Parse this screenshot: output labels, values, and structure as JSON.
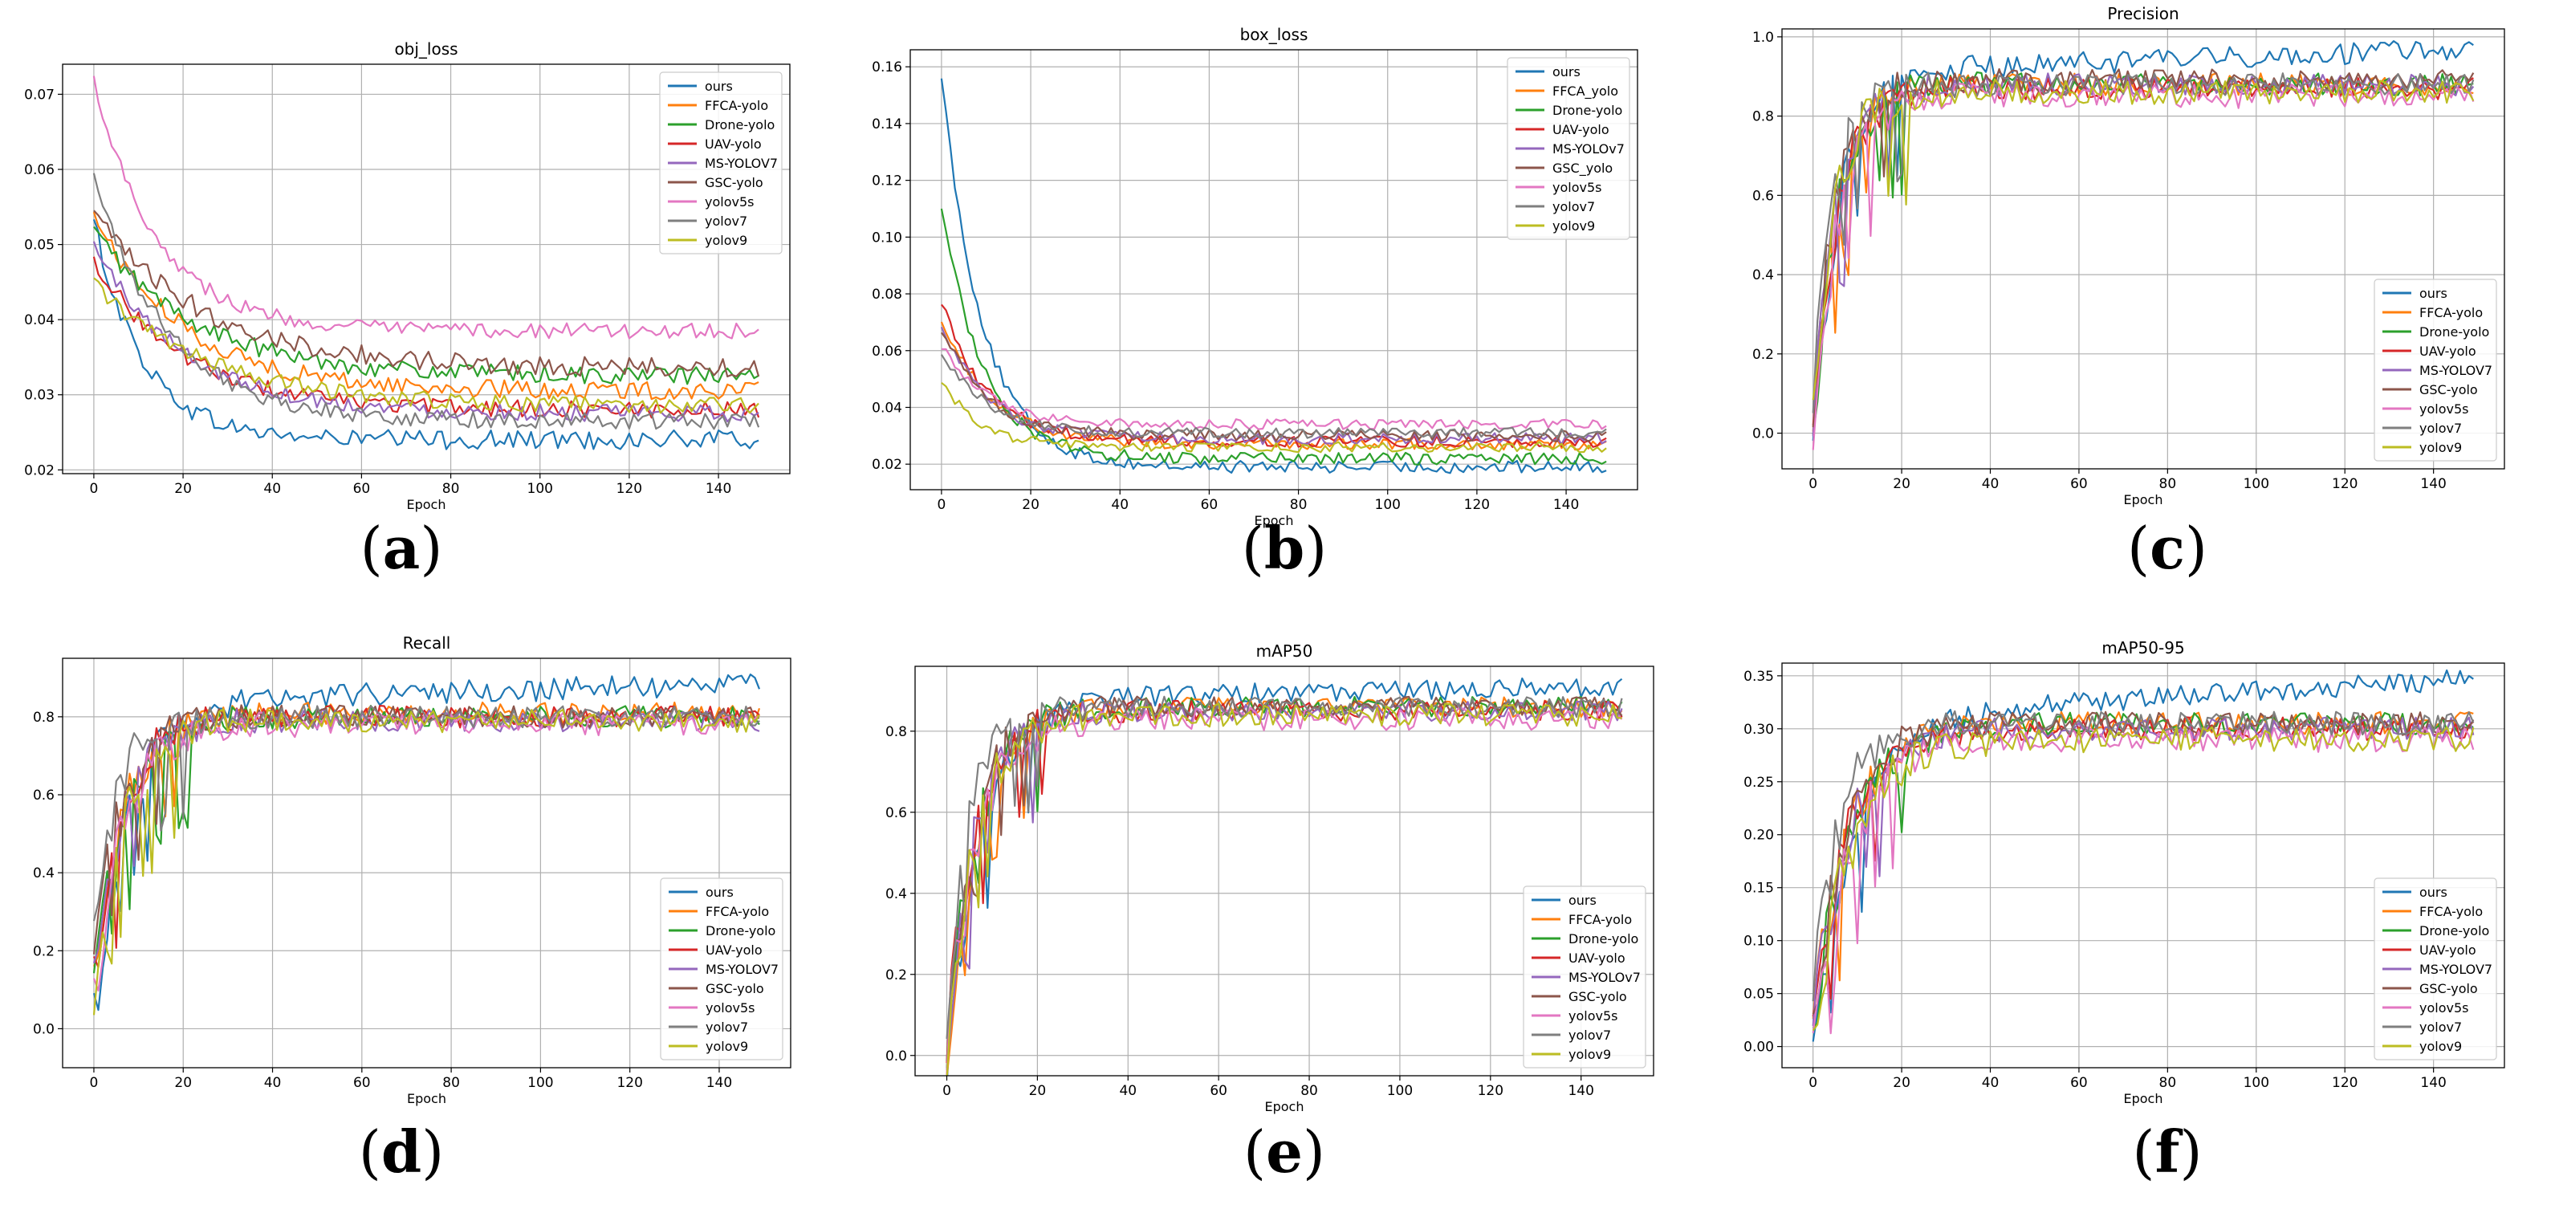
{
  "colors": {
    "ours": "#1f77b4",
    "FFCA-yolo": "#ff7f0e",
    "Drone-yolo": "#2ca02c",
    "UAV-yolo": "#d62728",
    "MS-YOLOV7": "#9467bd",
    "GSC-yolo": "#8c564b",
    "yolov5s": "#e377c2",
    "yolov7": "#7f7f7f",
    "yolov9": "#bcbd22"
  },
  "chart_data": [
    {
      "id": "a",
      "panel_label": "a",
      "type": "line",
      "title": "obj_loss",
      "xlabel": "Epoch",
      "ylabel": "",
      "xlim": [
        -7,
        156
      ],
      "ylim": [
        0.0195,
        0.074
      ],
      "xticks": [
        0,
        20,
        40,
        60,
        80,
        100,
        120,
        140
      ],
      "xtick_labels": [
        "0",
        "20",
        "40",
        "60",
        "80",
        "100",
        "120",
        "140"
      ],
      "yticks": [
        0.02,
        0.03,
        0.04,
        0.05,
        0.06,
        0.07
      ],
      "ytick_labels": [
        "0.02",
        "0.03",
        "0.04",
        "0.05",
        "0.06",
        "0.07"
      ],
      "grid": true,
      "legend_position": "top-right",
      "shape": "decay",
      "series": [
        {
          "name": "ours",
          "label": "ours",
          "color_key": "ours",
          "start": 0.053,
          "end": 0.024,
          "rate": 0.09,
          "noise": 0.0013
        },
        {
          "name": "FFCA-yolo",
          "label": "FFCA-yolo",
          "color_key": "FFCA-yolo",
          "start": 0.054,
          "end": 0.0305,
          "rate": 0.05,
          "noise": 0.0012
        },
        {
          "name": "Drone-yolo",
          "label": "Drone-yolo",
          "color_key": "Drone-yolo",
          "start": 0.052,
          "end": 0.0325,
          "rate": 0.045,
          "noise": 0.0012
        },
        {
          "name": "UAV-yolo",
          "label": "UAV-yolo",
          "color_key": "UAV-yolo",
          "start": 0.048,
          "end": 0.028,
          "rate": 0.05,
          "noise": 0.0011
        },
        {
          "name": "MS-YOLOV7",
          "label": "MS-YOLOV7",
          "color_key": "MS-YOLOV7",
          "start": 0.05,
          "end": 0.0275,
          "rate": 0.05,
          "noise": 0.0011
        },
        {
          "name": "GSC-yolo",
          "label": "GSC-yolo",
          "color_key": "GSC-yolo",
          "start": 0.054,
          "end": 0.0335,
          "rate": 0.04,
          "noise": 0.0013
        },
        {
          "name": "yolov5s",
          "label": "yolov5s",
          "color_key": "yolov5s",
          "start": 0.072,
          "end": 0.0385,
          "rate": 0.07,
          "noise": 0.001
        },
        {
          "name": "yolov7",
          "label": "yolov7",
          "color_key": "yolov7",
          "start": 0.059,
          "end": 0.0265,
          "rate": 0.06,
          "noise": 0.0011
        },
        {
          "name": "yolov9",
          "label": "yolov9",
          "color_key": "yolov9",
          "start": 0.045,
          "end": 0.0285,
          "rate": 0.04,
          "noise": 0.0011
        }
      ]
    },
    {
      "id": "b",
      "panel_label": "b",
      "type": "line",
      "title": "box_loss",
      "xlabel": "Epoch",
      "ylabel": "",
      "xlim": [
        -7,
        156
      ],
      "ylim": [
        0.011,
        0.166
      ],
      "xticks": [
        0,
        20,
        40,
        60,
        80,
        100,
        120,
        140
      ],
      "xtick_labels": [
        "0",
        "20",
        "40",
        "60",
        "80",
        "100",
        "120",
        "140"
      ],
      "yticks": [
        0.02,
        0.04,
        0.06,
        0.08,
        0.1,
        0.12,
        0.14,
        0.16
      ],
      "ytick_labels": [
        "0.02",
        "0.04",
        "0.06",
        "0.08",
        "0.10",
        "0.12",
        "0.14",
        "0.16"
      ],
      "grid": true,
      "legend_position": "top-right",
      "shape": "decay",
      "series": [
        {
          "name": "ours",
          "label": "ours",
          "color_key": "ours",
          "start": 0.158,
          "end": 0.019,
          "rate": 0.11,
          "noise": 0.0022
        },
        {
          "name": "FFCA_yolo",
          "label": "FFCA_yolo",
          "color_key": "FFCA-yolo",
          "start": 0.072,
          "end": 0.027,
          "rate": 0.09,
          "noise": 0.002
        },
        {
          "name": "Drone-yolo",
          "label": "Drone-yolo",
          "color_key": "Drone-yolo",
          "start": 0.112,
          "end": 0.022,
          "rate": 0.11,
          "noise": 0.0022
        },
        {
          "name": "UAV-yolo",
          "label": "UAV-yolo",
          "color_key": "UAV-yolo",
          "start": 0.078,
          "end": 0.028,
          "rate": 0.1,
          "noise": 0.002
        },
        {
          "name": "MS-YOLOv7",
          "label": "MS-YOLOv7",
          "color_key": "MS-YOLOV7",
          "start": 0.07,
          "end": 0.029,
          "rate": 0.1,
          "noise": 0.002
        },
        {
          "name": "GSC_yolo",
          "label": "GSC_yolo",
          "color_key": "GSC-yolo",
          "start": 0.068,
          "end": 0.03,
          "rate": 0.1,
          "noise": 0.002
        },
        {
          "name": "yolov5s",
          "label": "yolov5s",
          "color_key": "yolov5s",
          "start": 0.062,
          "end": 0.034,
          "rate": 0.1,
          "noise": 0.0018
        },
        {
          "name": "yolov7",
          "label": "yolov7",
          "color_key": "yolov7",
          "start": 0.06,
          "end": 0.031,
          "rate": 0.1,
          "noise": 0.0018
        },
        {
          "name": "yolov9",
          "label": "yolov9",
          "color_key": "yolov9",
          "start": 0.05,
          "end": 0.026,
          "rate": 0.12,
          "noise": 0.0018
        }
      ]
    },
    {
      "id": "c",
      "panel_label": "c",
      "type": "line",
      "title": "Precision",
      "xlabel": "Epoch",
      "ylabel": "",
      "xlim": [
        -7,
        156
      ],
      "ylim": [
        -0.09,
        1.02
      ],
      "xticks": [
        0,
        20,
        40,
        60,
        80,
        100,
        120,
        140
      ],
      "xtick_labels": [
        "0",
        "20",
        "40",
        "60",
        "80",
        "100",
        "120",
        "140"
      ],
      "yticks": [
        0.0,
        0.2,
        0.4,
        0.6,
        0.8,
        1.0
      ],
      "ytick_labels": [
        "0.0",
        "0.2",
        "0.4",
        "0.6",
        "0.8",
        "1.0"
      ],
      "grid": true,
      "legend_position": "bottom-right",
      "shape": "growth",
      "series": [
        {
          "name": "ours",
          "label": "ours",
          "color_key": "ours",
          "start": 0.0,
          "end": 0.91,
          "rate": 0.16,
          "noise": 0.028,
          "drift": 0.0004
        },
        {
          "name": "FFCA-yolo",
          "label": "FFCA-yolo",
          "color_key": "FFCA-yolo",
          "start": 0.02,
          "end": 0.88,
          "rate": 0.18,
          "noise": 0.028
        },
        {
          "name": "Drone-yolo",
          "label": "Drone-yolo",
          "color_key": "Drone-yolo",
          "start": 0.01,
          "end": 0.88,
          "rate": 0.18,
          "noise": 0.028
        },
        {
          "name": "UAV-yolo",
          "label": "UAV-yolo",
          "color_key": "UAV-yolo",
          "start": 0.03,
          "end": 0.87,
          "rate": 0.18,
          "noise": 0.028
        },
        {
          "name": "MS-YOLOV7",
          "label": "MS-YOLOV7",
          "color_key": "MS-YOLOV7",
          "start": 0.0,
          "end": 0.88,
          "rate": 0.19,
          "noise": 0.028
        },
        {
          "name": "GSC-yolo",
          "label": "GSC-yolo",
          "color_key": "GSC-yolo",
          "start": 0.02,
          "end": 0.89,
          "rate": 0.19,
          "noise": 0.028
        },
        {
          "name": "yolov5s",
          "label": "yolov5s",
          "color_key": "yolov5s",
          "start": -0.04,
          "end": 0.85,
          "rate": 0.18,
          "noise": 0.03
        },
        {
          "name": "yolov7",
          "label": "yolov7",
          "color_key": "yolov7",
          "start": 0.05,
          "end": 0.88,
          "rate": 0.22,
          "noise": 0.028
        },
        {
          "name": "yolov9",
          "label": "yolov9",
          "color_key": "yolov9",
          "start": 0.08,
          "end": 0.86,
          "rate": 0.2,
          "noise": 0.03
        }
      ]
    },
    {
      "id": "d",
      "panel_label": "d",
      "type": "line",
      "title": "Recall",
      "xlabel": "Epoch",
      "ylabel": "",
      "xlim": [
        -7,
        156
      ],
      "ylim": [
        -0.1,
        0.95
      ],
      "xticks": [
        0,
        20,
        40,
        60,
        80,
        100,
        120,
        140
      ],
      "xtick_labels": [
        "0",
        "20",
        "40",
        "60",
        "80",
        "100",
        "120",
        "140"
      ],
      "yticks": [
        0.0,
        0.2,
        0.4,
        0.6,
        0.8
      ],
      "ytick_labels": [
        "0.0",
        "0.2",
        "0.4",
        "0.6",
        "0.8"
      ],
      "grid": true,
      "legend_position": "bottom-right",
      "shape": "growth",
      "series": [
        {
          "name": "ours",
          "label": "ours",
          "color_key": "ours",
          "start": 0.03,
          "end": 0.84,
          "rate": 0.13,
          "noise": 0.03,
          "drift": 0.0003
        },
        {
          "name": "FFCA-yolo",
          "label": "FFCA-yolo",
          "color_key": "FFCA-yolo",
          "start": 0.1,
          "end": 0.81,
          "rate": 0.15,
          "noise": 0.028
        },
        {
          "name": "Drone-yolo",
          "label": "Drone-yolo",
          "color_key": "Drone-yolo",
          "start": 0.08,
          "end": 0.8,
          "rate": 0.15,
          "noise": 0.028
        },
        {
          "name": "UAV-yolo",
          "label": "UAV-yolo",
          "color_key": "UAV-yolo",
          "start": 0.12,
          "end": 0.8,
          "rate": 0.16,
          "noise": 0.028
        },
        {
          "name": "MS-YOLOV7",
          "label": "MS-YOLOV7",
          "color_key": "MS-YOLOV7",
          "start": 0.1,
          "end": 0.79,
          "rate": 0.16,
          "noise": 0.028
        },
        {
          "name": "GSC-yolo",
          "label": "GSC-yolo",
          "color_key": "GSC-yolo",
          "start": 0.12,
          "end": 0.8,
          "rate": 0.17,
          "noise": 0.028
        },
        {
          "name": "yolov5s",
          "label": "yolov5s",
          "color_key": "yolov5s",
          "start": 0.05,
          "end": 0.78,
          "rate": 0.15,
          "noise": 0.03
        },
        {
          "name": "yolov7",
          "label": "yolov7",
          "color_key": "yolov7",
          "start": 0.2,
          "end": 0.8,
          "rate": 0.2,
          "noise": 0.028
        },
        {
          "name": "yolov9",
          "label": "yolov9",
          "color_key": "yolov9",
          "start": -0.05,
          "end": 0.79,
          "rate": 0.16,
          "noise": 0.03
        }
      ]
    },
    {
      "id": "e",
      "panel_label": "e",
      "type": "line",
      "title": "mAP50",
      "xlabel": "Epoch",
      "ylabel": "",
      "xlim": [
        -7,
        156
      ],
      "ylim": [
        -0.05,
        0.96
      ],
      "xticks": [
        0,
        20,
        40,
        60,
        80,
        100,
        120,
        140
      ],
      "xtick_labels": [
        "0",
        "20",
        "40",
        "60",
        "80",
        "100",
        "120",
        "140"
      ],
      "yticks": [
        0.0,
        0.2,
        0.4,
        0.6,
        0.8
      ],
      "ytick_labels": [
        "0.0",
        "0.2",
        "0.4",
        "0.6",
        "0.8"
      ],
      "grid": true,
      "legend_position": "bottom-right",
      "shape": "growth",
      "series": [
        {
          "name": "ours",
          "label": "ours",
          "color_key": "ours",
          "start": -0.02,
          "end": 0.88,
          "rate": 0.13,
          "noise": 0.025,
          "drift": 0.0002
        },
        {
          "name": "FFCA-yolo",
          "label": "FFCA-yolo",
          "color_key": "FFCA-yolo",
          "start": 0.0,
          "end": 0.86,
          "rate": 0.14,
          "noise": 0.025
        },
        {
          "name": "Drone-yolo",
          "label": "Drone-yolo",
          "color_key": "Drone-yolo",
          "start": 0.02,
          "end": 0.86,
          "rate": 0.15,
          "noise": 0.025
        },
        {
          "name": "UAV-yolo",
          "label": "UAV-yolo",
          "color_key": "UAV-yolo",
          "start": 0.03,
          "end": 0.85,
          "rate": 0.16,
          "noise": 0.025
        },
        {
          "name": "MS-YOLOv7",
          "label": "MS-YOLOv7",
          "color_key": "MS-YOLOV7",
          "start": 0.01,
          "end": 0.85,
          "rate": 0.16,
          "noise": 0.025
        },
        {
          "name": "GSC-yolo",
          "label": "GSC-yolo",
          "color_key": "GSC-yolo",
          "start": 0.03,
          "end": 0.86,
          "rate": 0.17,
          "noise": 0.025
        },
        {
          "name": "yolov5s",
          "label": "yolov5s",
          "color_key": "yolov5s",
          "start": 0.0,
          "end": 0.83,
          "rate": 0.15,
          "noise": 0.028
        },
        {
          "name": "yolov7",
          "label": "yolov7",
          "color_key": "yolov7",
          "start": 0.08,
          "end": 0.86,
          "rate": 0.2,
          "noise": 0.025
        },
        {
          "name": "yolov9",
          "label": "yolov9",
          "color_key": "yolov9",
          "start": -0.02,
          "end": 0.84,
          "rate": 0.16,
          "noise": 0.028
        }
      ]
    },
    {
      "id": "f",
      "panel_label": "f",
      "type": "line",
      "title": "mAP50-95",
      "xlabel": "Epoch",
      "ylabel": "",
      "xlim": [
        -7,
        156
      ],
      "ylim": [
        -0.02,
        0.362
      ],
      "xticks": [
        0,
        20,
        40,
        60,
        80,
        100,
        120,
        140
      ],
      "xtick_labels": [
        "0",
        "20",
        "40",
        "60",
        "80",
        "100",
        "120",
        "140"
      ],
      "yticks": [
        0.0,
        0.05,
        0.1,
        0.15,
        0.2,
        0.25,
        0.3,
        0.35
      ],
      "ytick_labels": [
        "0.00",
        "0.05",
        "0.10",
        "0.15",
        "0.20",
        "0.25",
        "0.30",
        "0.35"
      ],
      "grid": true,
      "legend_position": "bottom-right",
      "shape": "growth",
      "series": [
        {
          "name": "ours",
          "label": "ours",
          "color_key": "ours",
          "start": 0.0,
          "end": 0.31,
          "rate": 0.11,
          "noise": 0.01,
          "drift": 0.00025
        },
        {
          "name": "FFCA-yolo",
          "label": "FFCA-yolo",
          "color_key": "FFCA-yolo",
          "start": 0.02,
          "end": 0.305,
          "rate": 0.12,
          "noise": 0.011
        },
        {
          "name": "Drone-yolo",
          "label": "Drone-yolo",
          "color_key": "Drone-yolo",
          "start": 0.01,
          "end": 0.305,
          "rate": 0.12,
          "noise": 0.011
        },
        {
          "name": "UAV-yolo",
          "label": "UAV-yolo",
          "color_key": "UAV-yolo",
          "start": 0.02,
          "end": 0.3,
          "rate": 0.13,
          "noise": 0.011
        },
        {
          "name": "MS-YOLOV7",
          "label": "MS-YOLOV7",
          "color_key": "MS-YOLOV7",
          "start": 0.01,
          "end": 0.3,
          "rate": 0.13,
          "noise": 0.011
        },
        {
          "name": "GSC-yolo",
          "label": "GSC-yolo",
          "color_key": "GSC-yolo",
          "start": 0.02,
          "end": 0.305,
          "rate": 0.14,
          "noise": 0.011
        },
        {
          "name": "yolov5s",
          "label": "yolov5s",
          "color_key": "yolov5s",
          "start": 0.0,
          "end": 0.29,
          "rate": 0.12,
          "noise": 0.012
        },
        {
          "name": "yolov7",
          "label": "yolov7",
          "color_key": "yolov7",
          "start": 0.03,
          "end": 0.305,
          "rate": 0.17,
          "noise": 0.011
        },
        {
          "name": "yolov9",
          "label": "yolov9",
          "color_key": "yolov9",
          "start": 0.0,
          "end": 0.29,
          "rate": 0.12,
          "noise": 0.012
        }
      ]
    }
  ]
}
